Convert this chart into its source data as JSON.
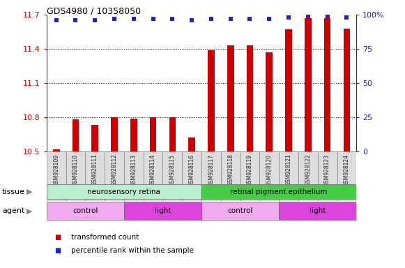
{
  "title": "GDS4980 / 10358050",
  "samples": [
    "GSM928109",
    "GSM928110",
    "GSM928111",
    "GSM928112",
    "GSM928113",
    "GSM928114",
    "GSM928115",
    "GSM928116",
    "GSM928117",
    "GSM928118",
    "GSM928119",
    "GSM928120",
    "GSM928121",
    "GSM928122",
    "GSM928123",
    "GSM928124"
  ],
  "transformed_count": [
    10.52,
    10.78,
    10.73,
    10.8,
    10.79,
    10.8,
    10.8,
    10.62,
    11.39,
    11.43,
    11.43,
    11.37,
    11.57,
    11.67,
    11.67,
    11.58
  ],
  "percentile_rank": [
    96,
    96,
    96,
    97,
    97,
    97,
    97,
    96,
    97,
    97,
    97,
    97,
    98,
    99,
    99,
    98
  ],
  "ylim_left": [
    10.5,
    11.7
  ],
  "ylim_right": [
    0,
    100
  ],
  "yticks_left": [
    10.5,
    10.8,
    11.1,
    11.4,
    11.7
  ],
  "ytick_labels_left": [
    "10.5",
    "10.8",
    "11.1",
    "11.4",
    "11.7"
  ],
  "yticks_right": [
    0,
    25,
    50,
    75,
    100
  ],
  "ytick_labels_right": [
    "0",
    "25",
    "50",
    "75",
    "100%"
  ],
  "bar_color": "#cc0000",
  "dot_color": "#2222cc",
  "tissue_groups": [
    {
      "label": "neurosensory retina",
      "start": 0,
      "end": 7,
      "color": "#bbeecc"
    },
    {
      "label": "retinal pigment epithelium",
      "start": 8,
      "end": 15,
      "color": "#44cc44"
    }
  ],
  "agent_groups": [
    {
      "label": "control",
      "start": 0,
      "end": 3,
      "color": "#f0aaee"
    },
    {
      "label": "light",
      "start": 4,
      "end": 7,
      "color": "#dd44dd"
    },
    {
      "label": "control",
      "start": 8,
      "end": 11,
      "color": "#f0aaee"
    },
    {
      "label": "light",
      "start": 12,
      "end": 15,
      "color": "#dd44dd"
    }
  ],
  "legend_items": [
    {
      "label": "transformed count",
      "color": "#cc0000"
    },
    {
      "label": "percentile rank within the sample",
      "color": "#2222cc"
    }
  ],
  "bg_color": "#ffffff",
  "left_axis_color": "#cc0000",
  "right_axis_color": "#2222cc",
  "grid_ticks": [
    10.8,
    11.1,
    11.4
  ],
  "cell_bg": "#dddddd",
  "bar_width": 0.35
}
